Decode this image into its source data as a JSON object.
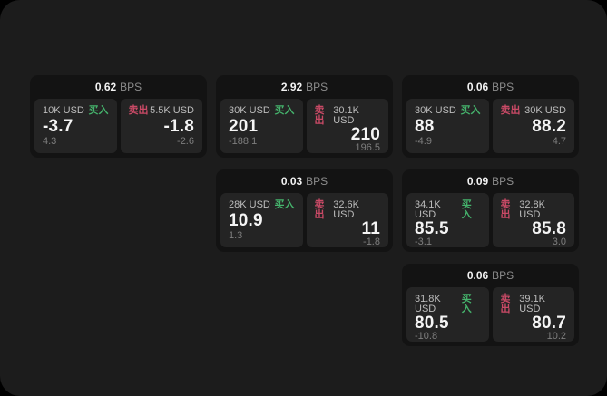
{
  "labels": {
    "buy": "买入",
    "sell": "卖出",
    "bps_unit": "BPS"
  },
  "colors": {
    "buy": "#45b36c",
    "sell": "#c94a66",
    "app_background": "#1c1c1c",
    "card_background": "#131313",
    "panel_background": "#242424"
  },
  "cards": [
    {
      "bps": "0.62",
      "buy": {
        "amount": "10K USD",
        "value": "-3.7",
        "sub": "4.3"
      },
      "sell": {
        "amount": "5.5K USD",
        "value": "-1.8",
        "sub": "-2.6"
      }
    },
    {
      "bps": "2.92",
      "buy": {
        "amount": "30K USD",
        "value": "201",
        "sub": "-188.1"
      },
      "sell": {
        "amount": "30.1K USD",
        "value": "210",
        "sub": "196.5"
      }
    },
    {
      "bps": "0.06",
      "buy": {
        "amount": "30K USD",
        "value": "88",
        "sub": "-4.9"
      },
      "sell": {
        "amount": "30K USD",
        "value": "88.2",
        "sub": "4.7"
      }
    },
    {
      "bps": "0.03",
      "buy": {
        "amount": "28K USD",
        "value": "10.9",
        "sub": "1.3"
      },
      "sell": {
        "amount": "32.6K USD",
        "value": "11",
        "sub": "-1.8"
      }
    },
    {
      "bps": "0.09",
      "buy": {
        "amount": "34.1K USD",
        "value": "85.5",
        "sub": "-3.1"
      },
      "sell": {
        "amount": "32.8K USD",
        "value": "85.8",
        "sub": "3.0"
      }
    },
    {
      "bps": "0.06",
      "buy": {
        "amount": "31.8K USD",
        "value": "80.5",
        "sub": "-10.8"
      },
      "sell": {
        "amount": "39.1K USD",
        "value": "80.7",
        "sub": "10.2"
      }
    }
  ]
}
